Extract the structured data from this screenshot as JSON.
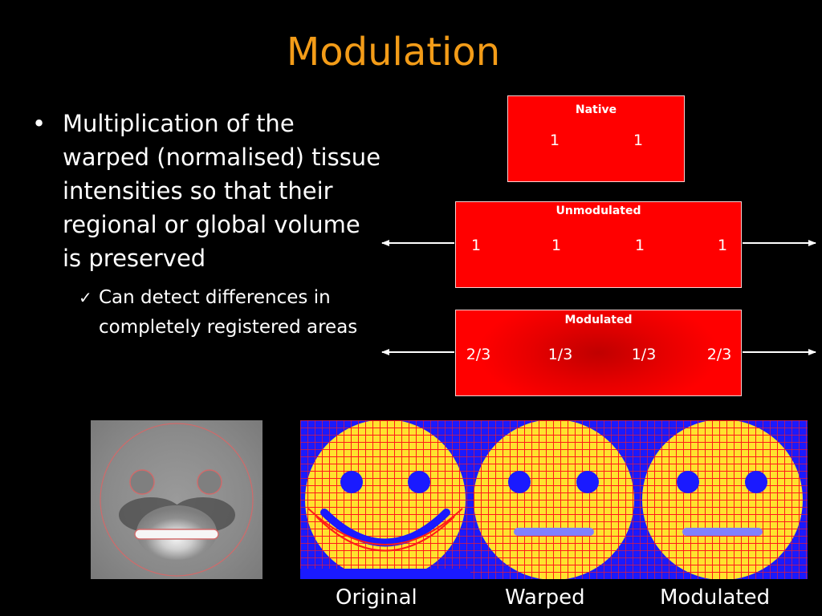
{
  "slide": {
    "title": "Modulation",
    "bullet_main": "Multiplication of the warped (normalised) tissue intensities so that their regional or global volume is preserved",
    "bullet_sub": "Can detect differences in completely registered areas"
  },
  "boxes": {
    "native": {
      "label": "Native",
      "values": [
        "1",
        "1"
      ]
    },
    "unmodulated": {
      "label": "Unmodulated",
      "values": [
        "1",
        "1",
        "1",
        "1"
      ]
    },
    "modulated": {
      "label": "Modulated",
      "values": [
        "2/3",
        "1/3",
        "1/3",
        "2/3"
      ]
    }
  },
  "captions": [
    "Original",
    "Warped",
    "Modulated"
  ],
  "colors": {
    "title": "#f39c18",
    "box_fill": "#ff0000",
    "grid_background": "#1a1aff",
    "grid_lines": "#ff1a1a",
    "face_fill": "#ffe22e"
  }
}
